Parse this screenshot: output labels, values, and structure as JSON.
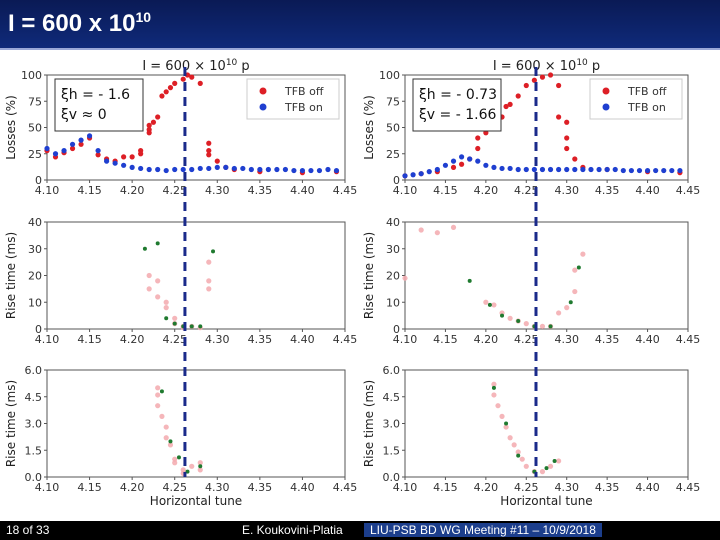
{
  "header": {
    "title_base": "I = 600 x 10",
    "title_exp": "10"
  },
  "footer": {
    "page": "18 of 33",
    "author": "E. Koukovini-Platia",
    "meeting": "LIU-PSB BD WG Meeting #11 – 10/9/2018"
  },
  "colors": {
    "tfb_off": "#dd1f26",
    "tfb_on": "#1f3fd0",
    "rise": "#1f7a2f",
    "rise_faint": "#f3a9ae",
    "dash": "#1a2a8a"
  },
  "chart_data": [
    {
      "type": "scatter",
      "panel": "left-losses",
      "title": "I = 600 × 10",
      "title_exp": "10",
      "title_unit": "p",
      "annotation": [
        "ξh = - 1.6",
        "ξv ≈ 0"
      ],
      "ylabel": "Losses (%)",
      "xlabel": "",
      "xlim": [
        4.1,
        4.45
      ],
      "ylim": [
        0,
        100
      ],
      "xticks": [
        "4.10",
        "4.15",
        "4.20",
        "4.25",
        "4.30",
        "4.35",
        "4.40",
        "4.45"
      ],
      "yticks": [
        "0",
        "25",
        "50",
        "75",
        "100"
      ],
      "vline": 4.262,
      "legend": [
        "TFB off",
        "TFB on"
      ],
      "series": [
        {
          "name": "TFB off",
          "color": "#dd1f26",
          "points": [
            [
              4.1,
              28
            ],
            [
              4.11,
              22
            ],
            [
              4.12,
              26
            ],
            [
              4.13,
              30
            ],
            [
              4.14,
              34
            ],
            [
              4.15,
              40
            ],
            [
              4.16,
              24
            ],
            [
              4.17,
              20
            ],
            [
              4.18,
              18
            ],
            [
              4.19,
              22
            ],
            [
              4.2,
              22
            ],
            [
              4.21,
              25
            ],
            [
              4.21,
              28
            ],
            [
              4.22,
              45
            ],
            [
              4.22,
              52
            ],
            [
              4.22,
              48
            ],
            [
              4.225,
              55
            ],
            [
              4.23,
              60
            ],
            [
              4.235,
              80
            ],
            [
              4.24,
              84
            ],
            [
              4.245,
              88
            ],
            [
              4.25,
              92
            ],
            [
              4.26,
              96
            ],
            [
              4.265,
              100
            ],
            [
              4.27,
              98
            ],
            [
              4.28,
              92
            ],
            [
              4.29,
              35
            ],
            [
              4.29,
              28
            ],
            [
              4.29,
              24
            ],
            [
              4.3,
              18
            ],
            [
              4.31,
              12
            ],
            [
              4.32,
              10
            ],
            [
              4.35,
              8
            ],
            [
              4.4,
              7
            ],
            [
              4.44,
              8
            ]
          ]
        },
        {
          "name": "TFB on",
          "color": "#1f3fd0",
          "points": [
            [
              4.1,
              30
            ],
            [
              4.11,
              25
            ],
            [
              4.12,
              28
            ],
            [
              4.13,
              34
            ],
            [
              4.14,
              38
            ],
            [
              4.15,
              42
            ],
            [
              4.16,
              28
            ],
            [
              4.17,
              18
            ],
            [
              4.18,
              16
            ],
            [
              4.19,
              14
            ],
            [
              4.2,
              12
            ],
            [
              4.21,
              11
            ],
            [
              4.22,
              10
            ],
            [
              4.23,
              10
            ],
            [
              4.24,
              9
            ],
            [
              4.25,
              10
            ],
            [
              4.26,
              10
            ],
            [
              4.27,
              10
            ],
            [
              4.28,
              11
            ],
            [
              4.29,
              11
            ],
            [
              4.3,
              12
            ],
            [
              4.31,
              12
            ],
            [
              4.32,
              11
            ],
            [
              4.33,
              11
            ],
            [
              4.34,
              10
            ],
            [
              4.35,
              10
            ],
            [
              4.36,
              10
            ],
            [
              4.37,
              10
            ],
            [
              4.38,
              10
            ],
            [
              4.39,
              9
            ],
            [
              4.4,
              9
            ],
            [
              4.41,
              9
            ],
            [
              4.42,
              9
            ],
            [
              4.43,
              10
            ],
            [
              4.44,
              9
            ]
          ]
        }
      ]
    },
    {
      "type": "scatter",
      "panel": "right-losses",
      "title": "I = 600 × 10",
      "title_exp": "10",
      "title_unit": "p",
      "annotation": [
        "ξh = - 0.73",
        "ξv = - 1.66"
      ],
      "ylabel": "Losses (%)",
      "xlabel": "",
      "xlim": [
        4.1,
        4.45
      ],
      "ylim": [
        0,
        100
      ],
      "xticks": [
        "4.10",
        "4.15",
        "4.20",
        "4.25",
        "4.30",
        "4.35",
        "4.40",
        "4.45"
      ],
      "yticks": [
        "0",
        "25",
        "50",
        "75",
        "100"
      ],
      "vline": 4.262,
      "legend": [
        "TFB off",
        "TFB on"
      ],
      "series": [
        {
          "name": "TFB off",
          "color": "#dd1f26",
          "points": [
            [
              4.1,
              4
            ],
            [
              4.12,
              6
            ],
            [
              4.14,
              8
            ],
            [
              4.16,
              12
            ],
            [
              4.17,
              15
            ],
            [
              4.18,
              20
            ],
            [
              4.19,
              30
            ],
            [
              4.19,
              40
            ],
            [
              4.2,
              45
            ],
            [
              4.21,
              50
            ],
            [
              4.22,
              60
            ],
            [
              4.225,
              70
            ],
            [
              4.23,
              72
            ],
            [
              4.24,
              80
            ],
            [
              4.25,
              90
            ],
            [
              4.26,
              95
            ],
            [
              4.27,
              98
            ],
            [
              4.28,
              100
            ],
            [
              4.29,
              90
            ],
            [
              4.29,
              60
            ],
            [
              4.3,
              55
            ],
            [
              4.3,
              40
            ],
            [
              4.3,
              30
            ],
            [
              4.31,
              20
            ],
            [
              4.32,
              12
            ],
            [
              4.35,
              10
            ],
            [
              4.4,
              8
            ],
            [
              4.44,
              7
            ]
          ]
        },
        {
          "name": "TFB on",
          "color": "#1f3fd0",
          "points": [
            [
              4.1,
              4
            ],
            [
              4.11,
              5
            ],
            [
              4.12,
              6
            ],
            [
              4.13,
              8
            ],
            [
              4.14,
              10
            ],
            [
              4.15,
              14
            ],
            [
              4.16,
              18
            ],
            [
              4.17,
              22
            ],
            [
              4.18,
              20
            ],
            [
              4.19,
              18
            ],
            [
              4.2,
              14
            ],
            [
              4.21,
              12
            ],
            [
              4.22,
              11
            ],
            [
              4.23,
              11
            ],
            [
              4.24,
              10
            ],
            [
              4.25,
              10
            ],
            [
              4.26,
              10
            ],
            [
              4.27,
              10
            ],
            [
              4.28,
              10
            ],
            [
              4.29,
              10
            ],
            [
              4.3,
              10
            ],
            [
              4.31,
              10
            ],
            [
              4.32,
              10
            ],
            [
              4.33,
              10
            ],
            [
              4.34,
              10
            ],
            [
              4.35,
              10
            ],
            [
              4.36,
              10
            ],
            [
              4.37,
              9
            ],
            [
              4.38,
              9
            ],
            [
              4.39,
              9
            ],
            [
              4.4,
              9
            ],
            [
              4.41,
              9
            ],
            [
              4.42,
              9
            ],
            [
              4.43,
              9
            ],
            [
              4.44,
              9
            ]
          ]
        }
      ]
    },
    {
      "type": "scatter",
      "panel": "left-rise",
      "ylabel": "Rise time (ms)",
      "xlabel": "",
      "xlim": [
        4.1,
        4.45
      ],
      "ylim": [
        0,
        40
      ],
      "xticks": [
        "4.10",
        "4.15",
        "4.20",
        "4.25",
        "4.30",
        "4.35",
        "4.40",
        "4.45"
      ],
      "yticks": [
        "0",
        "10",
        "20",
        "30",
        "40"
      ],
      "vline": 4.262,
      "series": [
        {
          "name": "",
          "color": "#f3a9ae",
          "points": [
            [
              4.22,
              20
            ],
            [
              4.22,
              15
            ],
            [
              4.23,
              18
            ],
            [
              4.23,
              12
            ],
            [
              4.24,
              10
            ],
            [
              4.24,
              8
            ],
            [
              4.25,
              4
            ],
            [
              4.25,
              2
            ],
            [
              4.26,
              1
            ],
            [
              4.26,
              0.5
            ],
            [
              4.27,
              1
            ],
            [
              4.28,
              0.5
            ],
            [
              4.29,
              15
            ],
            [
              4.29,
              18
            ],
            [
              4.29,
              25
            ]
          ]
        },
        {
          "name": "",
          "color": "#1f7a2f",
          "points": [
            [
              4.215,
              30
            ],
            [
              4.23,
              32
            ],
            [
              4.24,
              4
            ],
            [
              4.25,
              2
            ],
            [
              4.26,
              1
            ],
            [
              4.27,
              1
            ],
            [
              4.28,
              1
            ],
            [
              4.295,
              29
            ]
          ]
        }
      ]
    },
    {
      "type": "scatter",
      "panel": "right-rise",
      "ylabel": "Rise time (ms)",
      "xlabel": "",
      "xlim": [
        4.1,
        4.45
      ],
      "ylim": [
        0,
        40
      ],
      "xticks": [
        "4.10",
        "4.15",
        "4.20",
        "4.25",
        "4.30",
        "4.35",
        "4.40",
        "4.45"
      ],
      "yticks": [
        "0",
        "10",
        "20",
        "30",
        "40"
      ],
      "vline": 4.262,
      "series": [
        {
          "name": "",
          "color": "#f3a9ae",
          "points": [
            [
              4.1,
              19
            ],
            [
              4.12,
              37
            ],
            [
              4.14,
              36
            ],
            [
              4.16,
              38
            ],
            [
              4.2,
              10
            ],
            [
              4.21,
              9
            ],
            [
              4.22,
              6
            ],
            [
              4.23,
              4
            ],
            [
              4.24,
              3
            ],
            [
              4.25,
              2
            ],
            [
              4.26,
              1
            ],
            [
              4.27,
              1
            ],
            [
              4.28,
              1
            ],
            [
              4.29,
              6
            ],
            [
              4.3,
              8
            ],
            [
              4.31,
              14
            ],
            [
              4.31,
              22
            ],
            [
              4.32,
              28
            ]
          ]
        },
        {
          "name": "",
          "color": "#1f7a2f",
          "points": [
            [
              4.18,
              18
            ],
            [
              4.205,
              9
            ],
            [
              4.22,
              5
            ],
            [
              4.24,
              3
            ],
            [
              4.26,
              1
            ],
            [
              4.28,
              1
            ],
            [
              4.305,
              10
            ],
            [
              4.315,
              23
            ]
          ]
        }
      ]
    },
    {
      "type": "scatter",
      "panel": "left-rise-zoom",
      "ylabel": "Rise time (ms)",
      "xlabel": "Horizontal tune",
      "xlim": [
        4.1,
        4.45
      ],
      "ylim": [
        0,
        6.0
      ],
      "xticks": [
        "4.10",
        "4.15",
        "4.20",
        "4.25",
        "4.30",
        "4.35",
        "4.40",
        "4.45"
      ],
      "yticks": [
        "0.0",
        "1.5",
        "3.0",
        "4.5",
        "6.0"
      ],
      "vline": 4.262,
      "series": [
        {
          "name": "",
          "color": "#f3a9ae",
          "points": [
            [
              4.23,
              5.0
            ],
            [
              4.23,
              4.6
            ],
            [
              4.23,
              4.0
            ],
            [
              4.235,
              3.4
            ],
            [
              4.24,
              2.8
            ],
            [
              4.24,
              2.2
            ],
            [
              4.245,
              1.8
            ],
            [
              4.25,
              1.0
            ],
            [
              4.25,
              0.8
            ],
            [
              4.26,
              0.4
            ],
            [
              4.26,
              0.2
            ],
            [
              4.27,
              0.6
            ],
            [
              4.28,
              0.8
            ],
            [
              4.28,
              0.4
            ]
          ]
        },
        {
          "name": "",
          "color": "#1f7a2f",
          "points": [
            [
              4.235,
              4.8
            ],
            [
              4.245,
              2.0
            ],
            [
              4.255,
              1.1
            ],
            [
              4.265,
              0.3
            ],
            [
              4.28,
              0.6
            ]
          ]
        }
      ]
    },
    {
      "type": "scatter",
      "panel": "right-rise-zoom",
      "ylabel": "Rise time (ms)",
      "xlabel": "Horizontal tune",
      "xlim": [
        4.1,
        4.45
      ],
      "ylim": [
        0,
        6.0
      ],
      "xticks": [
        "4.10",
        "4.15",
        "4.20",
        "4.25",
        "4.30",
        "4.35",
        "4.40",
        "4.45"
      ],
      "yticks": [
        "0.0",
        "1.5",
        "3.0",
        "4.5",
        "6.0"
      ],
      "vline": 4.262,
      "series": [
        {
          "name": "",
          "color": "#f3a9ae",
          "points": [
            [
              4.21,
              5.2
            ],
            [
              4.21,
              4.6
            ],
            [
              4.215,
              4.0
            ],
            [
              4.22,
              3.4
            ],
            [
              4.225,
              2.8
            ],
            [
              4.23,
              2.2
            ],
            [
              4.235,
              1.8
            ],
            [
              4.24,
              1.4
            ],
            [
              4.245,
              1.0
            ],
            [
              4.25,
              0.6
            ],
            [
              4.26,
              0.3
            ],
            [
              4.27,
              0.3
            ],
            [
              4.28,
              0.6
            ],
            [
              4.29,
              0.9
            ]
          ]
        },
        {
          "name": "",
          "color": "#1f7a2f",
          "points": [
            [
              4.21,
              5.0
            ],
            [
              4.225,
              3.0
            ],
            [
              4.24,
              1.2
            ],
            [
              4.26,
              0.3
            ],
            [
              4.275,
              0.5
            ],
            [
              4.285,
              0.9
            ]
          ]
        }
      ]
    }
  ]
}
